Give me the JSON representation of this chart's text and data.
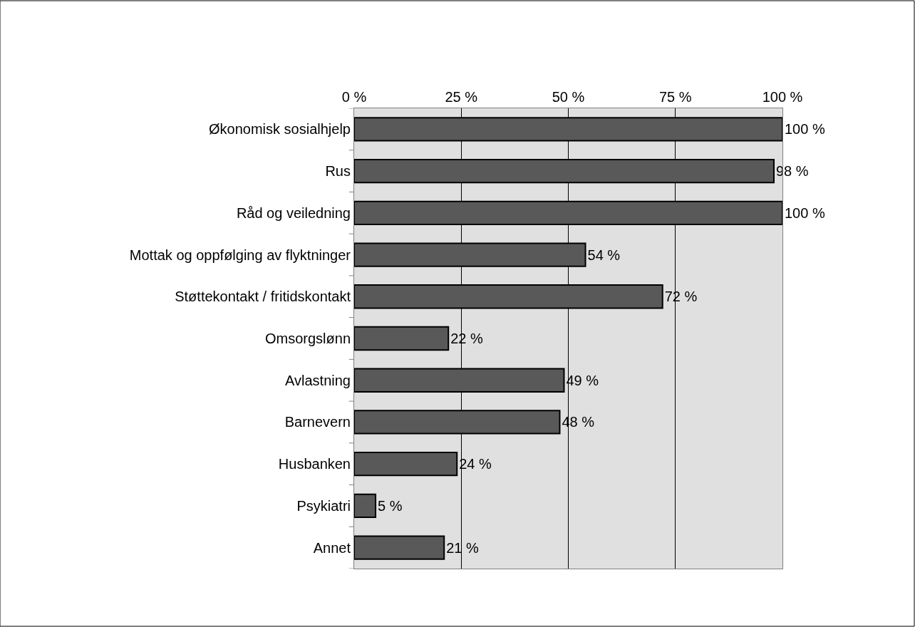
{
  "chart_data": {
    "type": "bar",
    "orientation": "horizontal",
    "categories": [
      "Økonomisk sosialhjelp",
      "Rus",
      "Råd og veiledning",
      "Mottak og oppfølging av flyktninger",
      "Støttekontakt / fritidskontakt",
      "Omsorgslønn",
      "Avlastning",
      "Barnevern",
      "Husbanken",
      "Psykiatri",
      "Annet"
    ],
    "values": [
      100,
      98,
      100,
      54,
      72,
      22,
      49,
      48,
      24,
      5,
      21
    ],
    "value_labels": [
      "100 %",
      "98 %",
      "100 %",
      "54 %",
      "72 %",
      "22 %",
      "49 %",
      "48 %",
      "24 %",
      "5 %",
      "21 %"
    ],
    "color": "#595959",
    "xlim": [
      0,
      100
    ],
    "xticks": [
      {
        "value": 0,
        "label": "0 %"
      },
      {
        "value": 25,
        "label": "25 %"
      },
      {
        "value": 50,
        "label": "50 %"
      },
      {
        "value": 75,
        "label": "75 %"
      },
      {
        "value": 100,
        "label": "100 %"
      }
    ],
    "grid": "x",
    "legend": false
  }
}
